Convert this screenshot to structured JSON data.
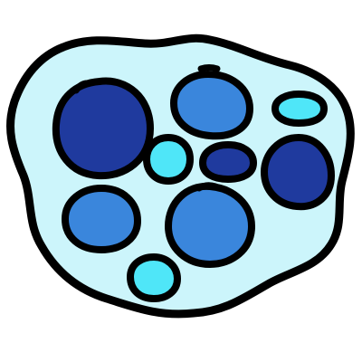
{
  "colors": {
    "background": "#ffffff",
    "outline": "#000000",
    "blob_fill": "#ccf5fb",
    "dark_blue": "#1f3a9e",
    "medium_blue": "#3a86dc",
    "cyan": "#4fe6f8"
  },
  "circles": [
    {
      "id": "large-dark-left",
      "color": "dark_blue"
    },
    {
      "id": "medium-top-center",
      "color": "medium_blue"
    },
    {
      "id": "small-cyan-top-right",
      "color": "cyan"
    },
    {
      "id": "small-cyan-center",
      "color": "cyan"
    },
    {
      "id": "small-dark-oval-center",
      "color": "dark_blue"
    },
    {
      "id": "dark-right",
      "color": "dark_blue"
    },
    {
      "id": "medium-left-bottom",
      "color": "medium_blue"
    },
    {
      "id": "medium-center-bottom",
      "color": "medium_blue"
    },
    {
      "id": "small-cyan-bottom",
      "color": "cyan"
    }
  ]
}
